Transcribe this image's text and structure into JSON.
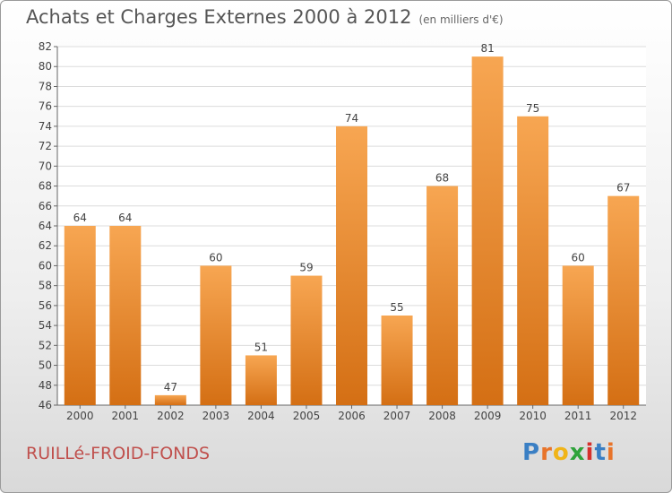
{
  "title": "Achats et Charges Externes 2000 à 2012",
  "subtitle": "(en milliers d'€)",
  "location": "RUILLé-FROID-FONDS",
  "logo": {
    "letters": [
      "P",
      "r",
      "o",
      "x",
      "i",
      "t",
      "i"
    ],
    "colors": [
      "#3a7fc4",
      "#e8742a",
      "#f0b418",
      "#2fa33b",
      "#d6312c",
      "#3a7fc4",
      "#e8742a"
    ]
  },
  "colors": {
    "bar_top": "#f7a652",
    "bar_bottom": "#d46f14",
    "title": "#555555",
    "location": "#c0504d"
  },
  "chart_data": {
    "type": "bar",
    "categories": [
      "2000",
      "2001",
      "2002",
      "2003",
      "2004",
      "2005",
      "2006",
      "2007",
      "2008",
      "2009",
      "2010",
      "2011",
      "2012"
    ],
    "values": [
      64,
      64,
      47,
      60,
      51,
      59,
      74,
      55,
      68,
      81,
      75,
      60,
      67
    ],
    "ylim": [
      46,
      82
    ],
    "yticks": [
      46,
      48,
      50,
      52,
      54,
      56,
      58,
      60,
      62,
      64,
      66,
      68,
      70,
      72,
      74,
      76,
      78,
      80,
      82
    ],
    "grid": true,
    "xlabel": "",
    "ylabel": ""
  }
}
